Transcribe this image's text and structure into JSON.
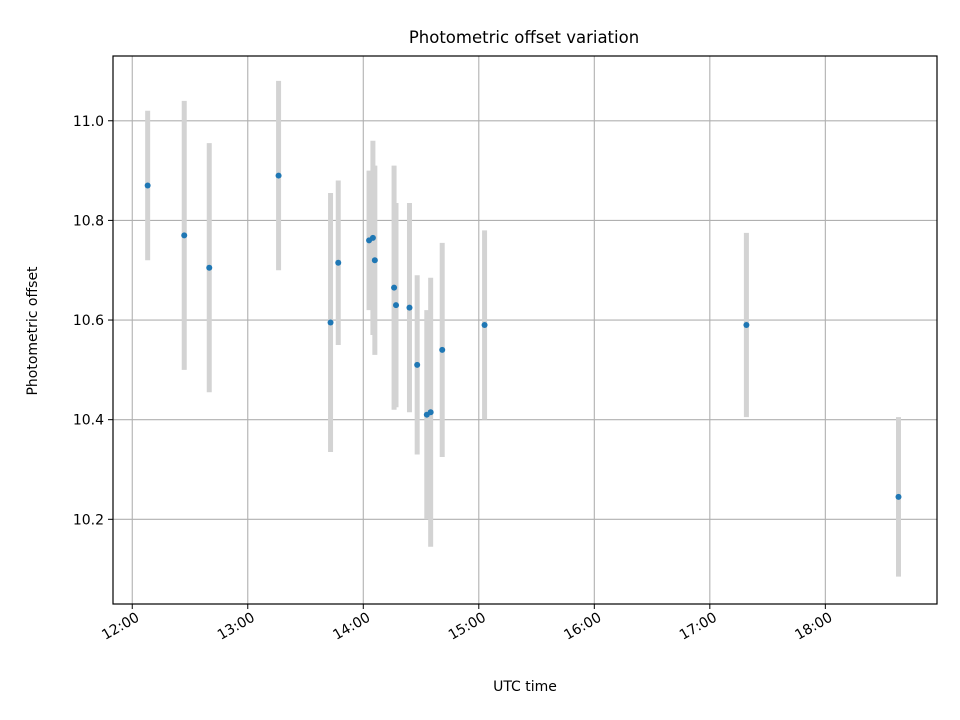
{
  "chart_data": {
    "type": "scatter",
    "title": "Photometric offset variation",
    "xlabel": "UTC time",
    "ylabel": "Photometric offset",
    "xlim": [
      "11:50",
      "18:58"
    ],
    "ylim": [
      10.03,
      11.13
    ],
    "grid": true,
    "x_ticks": [
      "12:00",
      "13:00",
      "14:00",
      "15:00",
      "16:00",
      "17:00",
      "18:00"
    ],
    "y_ticks": [
      "10.2",
      "10.4",
      "10.6",
      "10.8",
      "11.0"
    ],
    "series": [
      {
        "marker_color": "#1f77b4",
        "errorbar_color": "#d3d3d3",
        "points": [
          {
            "x": "12:08",
            "y": 10.87,
            "err": 0.15
          },
          {
            "x": "12:27",
            "y": 10.77,
            "err": 0.27
          },
          {
            "x": "12:40",
            "y": 10.705,
            "err": 0.25
          },
          {
            "x": "13:16",
            "y": 10.89,
            "err": 0.19
          },
          {
            "x": "13:43",
            "y": 10.595,
            "err": 0.26
          },
          {
            "x": "13:47",
            "y": 10.715,
            "err": 0.165
          },
          {
            "x": "14:03",
            "y": 10.76,
            "err": 0.14
          },
          {
            "x": "14:05",
            "y": 10.765,
            "err": 0.195
          },
          {
            "x": "14:06",
            "y": 10.72,
            "err": 0.19
          },
          {
            "x": "14:16",
            "y": 10.665,
            "err": 0.245
          },
          {
            "x": "14:17",
            "y": 10.63,
            "err": 0.205
          },
          {
            "x": "14:24",
            "y": 10.625,
            "err": 0.21
          },
          {
            "x": "14:28",
            "y": 10.51,
            "err": 0.18
          },
          {
            "x": "14:33",
            "y": 10.41,
            "err": 0.21
          },
          {
            "x": "14:35",
            "y": 10.415,
            "err": 0.27
          },
          {
            "x": "14:41",
            "y": 10.54,
            "err": 0.215
          },
          {
            "x": "15:03",
            "y": 10.59,
            "err": 0.19
          },
          {
            "x": "17:19",
            "y": 10.59,
            "err": 0.185
          },
          {
            "x": "18:38",
            "y": 10.245,
            "err": 0.16
          }
        ]
      }
    ]
  }
}
